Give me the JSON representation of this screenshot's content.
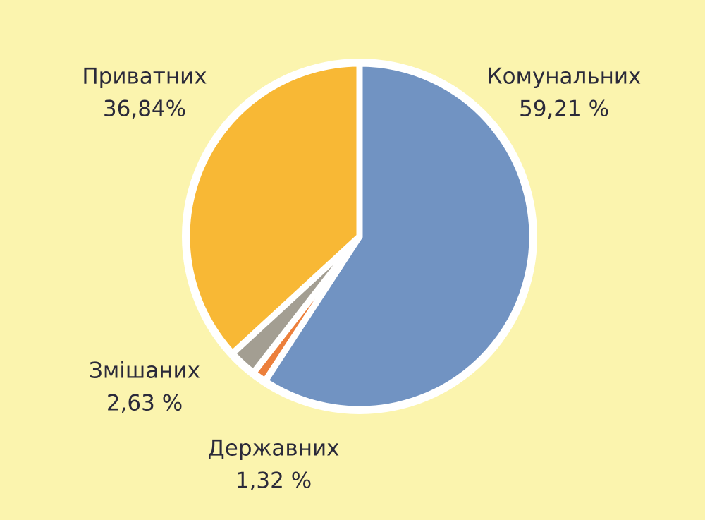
{
  "chart_data": {
    "type": "pie",
    "categories": [
      "Комунальних",
      "Державних",
      "Змішаних",
      "Приватних"
    ],
    "values": [
      59.21,
      1.32,
      2.63,
      36.84
    ],
    "value_labels": [
      "59,21 %",
      "1,32 %",
      "2,63 %",
      "36,84%"
    ],
    "colors": [
      "#7193c2",
      "#ec7f3b",
      "#a39e92",
      "#f8b835"
    ]
  }
}
